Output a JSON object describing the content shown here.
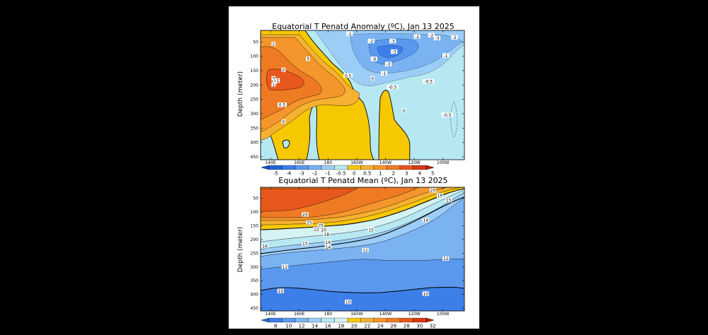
{
  "chart_data": [
    {
      "type": "heatmap",
      "title": "Equatorial T Penatd Anomaly (ºC), Jan 13 2025",
      "ylabel": "Depth (meter)",
      "x_ticks": [
        "140E",
        "160E",
        "180",
        "160W",
        "140W",
        "120W",
        "100W"
      ],
      "x_tick_lon": [
        140,
        160,
        180,
        200,
        220,
        240,
        260
      ],
      "x_range": [
        133,
        275
      ],
      "y_ticks": [
        50,
        100,
        150,
        200,
        250,
        300,
        350,
        400,
        450
      ],
      "y_range": [
        10,
        460
      ],
      "colorbar": {
        "labels": [
          "-5",
          "-4",
          "-3",
          "-2",
          "-1",
          "-0.5",
          "0",
          "0.5",
          "1",
          "2",
          "3",
          "4",
          "5"
        ],
        "colors": [
          "#1e64d8",
          "#3c7fe8",
          "#5a98ee",
          "#7ab2f2",
          "#9ccdf6",
          "#b6e8f2",
          "#f6c800",
          "#f6b130",
          "#f5962c",
          "#ef7a24",
          "#e8571c",
          "#d73a14"
        ],
        "arrow_left": "#1552c8",
        "arrow_right": "#c8180c"
      },
      "contour_labels": [
        {
          "text": "-1",
          "lon": 195,
          "depth": 22
        },
        {
          "text": "-2",
          "lon": 210,
          "depth": 48
        },
        {
          "text": "-3",
          "lon": 225,
          "depth": 48
        },
        {
          "text": "-2",
          "lon": 242,
          "depth": 32
        },
        {
          "text": "-2",
          "lon": 252,
          "depth": 28
        },
        {
          "text": "-3",
          "lon": 256,
          "depth": 38
        },
        {
          "text": "-2",
          "lon": 268,
          "depth": 35
        },
        {
          "text": "-3",
          "lon": 226,
          "depth": 85
        },
        {
          "text": "-4",
          "lon": 212,
          "depth": 110
        },
        {
          "text": "-3",
          "lon": 222,
          "depth": 128
        },
        {
          "text": "-1",
          "lon": 262,
          "depth": 98
        },
        {
          "text": "-1",
          "lon": 219,
          "depth": 160
        },
        {
          "text": "-0.5",
          "lon": 225,
          "depth": 208
        },
        {
          "text": "-0.5",
          "lon": 250,
          "depth": 188
        },
        {
          "text": "-0.5",
          "lon": 263,
          "depth": 305
        },
        {
          "text": "2",
          "lon": 142,
          "depth": 58
        },
        {
          "text": "3",
          "lon": 166,
          "depth": 110
        },
        {
          "text": "2",
          "lon": 149,
          "depth": 148
        },
        {
          "text": "3",
          "lon": 142,
          "depth": 178
        },
        {
          "text": "2",
          "lon": 143,
          "depth": 190
        },
        {
          "text": "1",
          "lon": 142,
          "depth": 200
        },
        {
          "text": "1",
          "lon": 145,
          "depth": 185
        },
        {
          "text": "0.5",
          "lon": 148,
          "depth": 270
        },
        {
          "text": "0.5",
          "lon": 194,
          "depth": 168
        },
        {
          "text": "0",
          "lon": 149,
          "depth": 328
        },
        {
          "text": "0",
          "lon": 211,
          "depth": 178
        },
        {
          "text": "0",
          "lon": 233,
          "depth": 290
        }
      ]
    },
    {
      "type": "heatmap",
      "title": "Equatorial T Penatd Mean (ºC), Jan 13 2025",
      "ylabel": "Depth (meter)",
      "x_ticks": [
        "140E",
        "160E",
        "180",
        "160W",
        "140W",
        "120W",
        "100W"
      ],
      "x_tick_lon": [
        140,
        160,
        180,
        200,
        220,
        240,
        260
      ],
      "x_range": [
        133,
        275
      ],
      "y_ticks": [
        50,
        100,
        150,
        200,
        250,
        300,
        350,
        400,
        450
      ],
      "y_range": [
        10,
        460
      ],
      "colorbar": {
        "labels": [
          "8",
          "10",
          "12",
          "14",
          "16",
          "18",
          "20",
          "22",
          "24",
          "26",
          "28",
          "30",
          "32"
        ],
        "colors": [
          "#3c7fe8",
          "#5a98ee",
          "#7ab2f2",
          "#9ccdf6",
          "#b6e8f2",
          "#d6f3f4",
          "#f6c800",
          "#f6b130",
          "#f5962c",
          "#ef7a24",
          "#e8571c",
          "#d73a14"
        ],
        "arrow_left": "#2868d8",
        "arrow_right": "#c8180c"
      },
      "contour_labels": [
        {
          "text": "20",
          "lon": 253,
          "depth": 22
        },
        {
          "text": "16",
          "lon": 258,
          "depth": 40
        },
        {
          "text": "15",
          "lon": 264,
          "depth": 58
        },
        {
          "text": "25",
          "lon": 164,
          "depth": 110
        },
        {
          "text": "25",
          "lon": 167,
          "depth": 140
        },
        {
          "text": "20",
          "lon": 177,
          "depth": 165
        },
        {
          "text": "25",
          "lon": 175,
          "depth": 150
        },
        {
          "text": "22",
          "lon": 172,
          "depth": 163
        },
        {
          "text": "18",
          "lon": 179,
          "depth": 182
        },
        {
          "text": "16",
          "lon": 180,
          "depth": 210
        },
        {
          "text": "14",
          "lon": 180,
          "depth": 228
        },
        {
          "text": "15",
          "lon": 164,
          "depth": 215
        },
        {
          "text": "15",
          "lon": 210,
          "depth": 165
        },
        {
          "text": "14",
          "lon": 248,
          "depth": 130
        },
        {
          "text": "16",
          "lon": 136,
          "depth": 225
        },
        {
          "text": "12",
          "lon": 150,
          "depth": 300
        },
        {
          "text": "12",
          "lon": 206,
          "depth": 240
        },
        {
          "text": "12",
          "lon": 262,
          "depth": 270
        },
        {
          "text": "10",
          "lon": 147,
          "depth": 388
        },
        {
          "text": "10",
          "lon": 194,
          "depth": 428
        },
        {
          "text": "10",
          "lon": 248,
          "depth": 398
        }
      ]
    }
  ]
}
